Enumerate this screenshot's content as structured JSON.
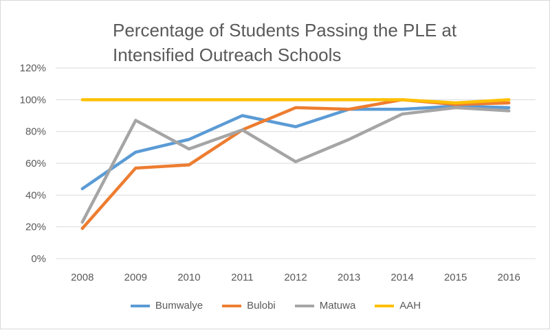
{
  "chart_data": {
    "type": "line",
    "title_lines": [
      "Percentage of Students Passing the PLE at",
      "Intensified Outreach Schools"
    ],
    "categories": [
      "2008",
      "2009",
      "2010",
      "2011",
      "2012",
      "2013",
      "2014",
      "2015",
      "2016"
    ],
    "yticks": [
      "0%",
      "20%",
      "40%",
      "60%",
      "80%",
      "100%",
      "120%"
    ],
    "ylim": [
      0,
      120
    ],
    "grid": true,
    "legend_position": "bottom",
    "series": [
      {
        "name": "Bumwalye",
        "color": "#5b9bd5",
        "values": [
          44,
          67,
          75,
          90,
          83,
          94,
          94,
          96,
          95
        ]
      },
      {
        "name": "Bulobi",
        "color": "#ed7d31",
        "values": [
          19,
          57,
          59,
          81,
          95,
          94,
          100,
          97,
          98
        ]
      },
      {
        "name": "Matuwa",
        "color": "#a5a5a5",
        "values": [
          23,
          87,
          69,
          81,
          61,
          75,
          91,
          95,
          93
        ]
      },
      {
        "name": "AAH",
        "color": "#ffc000",
        "values": [
          100,
          100,
          100,
          100,
          100,
          100,
          100,
          98,
          100
        ]
      }
    ]
  }
}
